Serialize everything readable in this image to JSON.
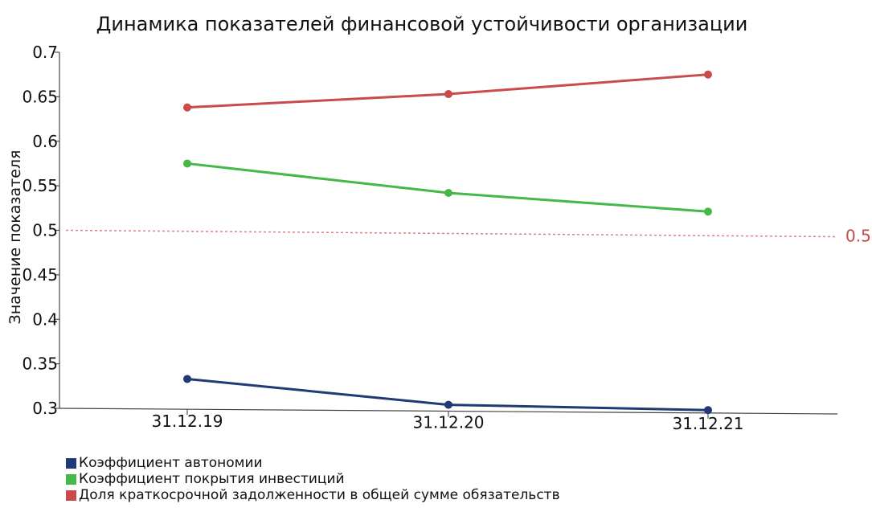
{
  "chart_data": {
    "type": "line",
    "title": "Динамика показателей финансовой устойчивости организации",
    "xlabel": "",
    "ylabel": "Значение показателя",
    "categories": [
      "31.12.19",
      "31.12.20",
      "31.12.21"
    ],
    "ylim": [
      0.3,
      0.7
    ],
    "yticks": [
      "0.3",
      "0.35",
      "0.4",
      "0.45",
      "0.5",
      "0.55",
      "0.6",
      "0.65",
      "0.7"
    ],
    "grid": false,
    "legend_position": "bottom-left",
    "reference_line": {
      "value": 0.5,
      "label": "0.5",
      "color": "#d98282"
    },
    "series": [
      {
        "name": "Коэффициент автономии",
        "color": "#1f3a75",
        "values": [
          0.333,
          0.304,
          0.298
        ]
      },
      {
        "name": "Коэффициент покрытия инвестиций",
        "color": "#45b84a",
        "values": [
          0.575,
          0.542,
          0.521
        ]
      },
      {
        "name": "Доля краткосрочной задолженности в общей сумме обязательств",
        "color": "#c94b4b",
        "values": [
          0.638,
          0.653,
          0.675
        ]
      }
    ]
  }
}
